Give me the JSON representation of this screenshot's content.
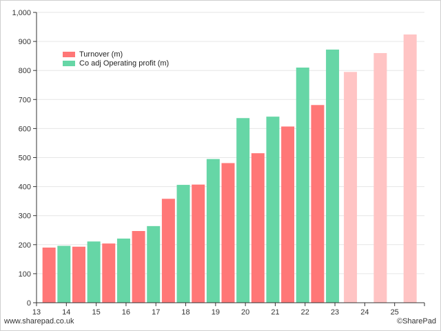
{
  "chart_data": {
    "type": "bar",
    "categories": [
      "13",
      "14",
      "15",
      "16",
      "17",
      "18",
      "19",
      "20",
      "21",
      "22",
      "23",
      "24",
      "25"
    ],
    "series": [
      {
        "name": "Turnover (m)",
        "color": "#ff7777",
        "forecast_color": "#ffc4c4",
        "values": [
          {
            "x": 13.2,
            "y": 190
          },
          {
            "x": 14.2,
            "y": 193
          },
          {
            "x": 15.2,
            "y": 204
          },
          {
            "x": 16.2,
            "y": 247
          },
          {
            "x": 17.2,
            "y": 358
          },
          {
            "x": 18.2,
            "y": 407
          },
          {
            "x": 19.2,
            "y": 481
          },
          {
            "x": 20.2,
            "y": 515
          },
          {
            "x": 21.2,
            "y": 607
          },
          {
            "x": 22.2,
            "y": 681
          },
          {
            "x": 23.3,
            "y": 795,
            "forecast": true
          },
          {
            "x": 24.3,
            "y": 860,
            "forecast": true
          },
          {
            "x": 25.3,
            "y": 924,
            "forecast": true
          }
        ]
      },
      {
        "name": "Co adj Operating profit (m)",
        "color": "#66d6a6",
        "values": [
          {
            "x": 13.7,
            "y": 196
          },
          {
            "x": 14.7,
            "y": 211
          },
          {
            "x": 15.7,
            "y": 221
          },
          {
            "x": 16.7,
            "y": 264
          },
          {
            "x": 17.7,
            "y": 406
          },
          {
            "x": 18.7,
            "y": 495
          },
          {
            "x": 19.7,
            "y": 636
          },
          {
            "x": 20.7,
            "y": 641
          },
          {
            "x": 21.7,
            "y": 810
          },
          {
            "x": 22.7,
            "y": 872
          }
        ]
      }
    ],
    "xlim": [
      13,
      26
    ],
    "ylim": [
      0,
      1000
    ],
    "y_ticks": [
      "0",
      "100",
      "200",
      "300",
      "400",
      "500",
      "600",
      "700",
      "800",
      "900",
      "1,000"
    ],
    "grid": true,
    "legend": "top-left"
  },
  "footer": {
    "source": "www.sharepad.co.uk",
    "credit": "©SharePad"
  }
}
